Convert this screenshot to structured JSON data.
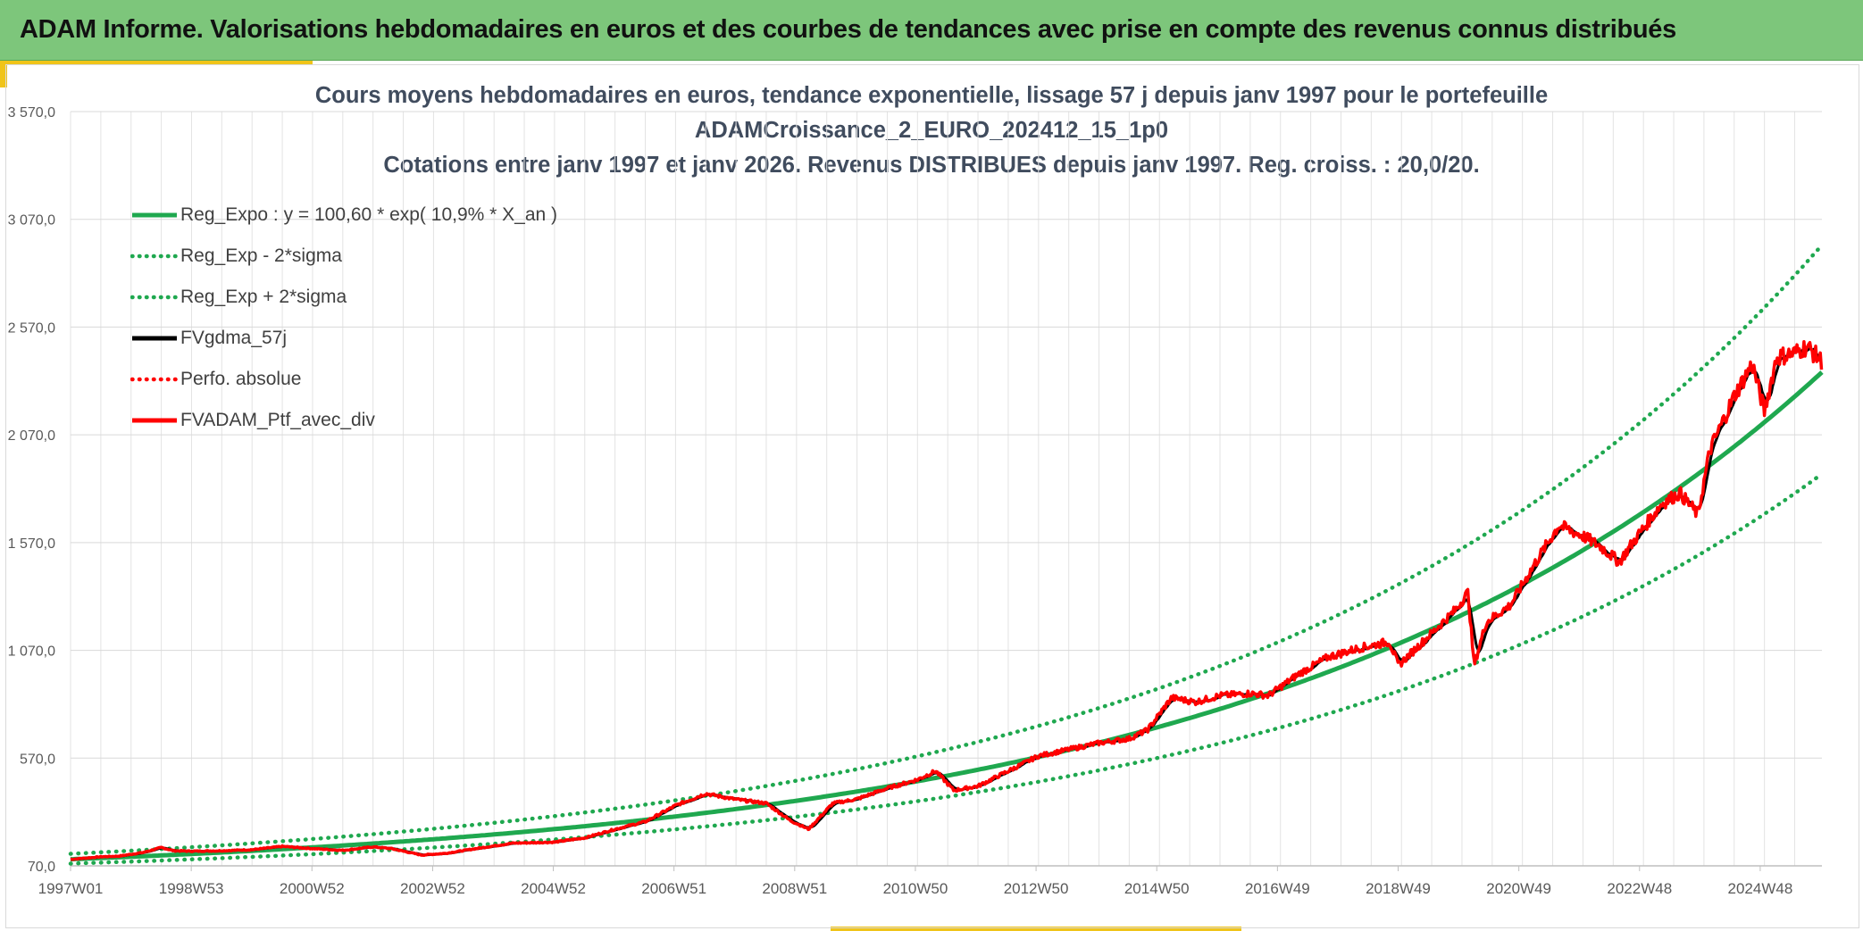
{
  "banner": {
    "title": "ADAM Informe. Valorisations hebdomadaires en euros et des courbes de tendances avec prise en compte des revenus connus distribués"
  },
  "chart_data": {
    "type": "line",
    "title_lines": [
      "Cours moyens hebdomadaires en euros, tendance exponentielle, lissage 57 j depuis janv 1997 pour le portefeuille",
      "ADAMCroissance_2_EURO_202412_15_1p0",
      "Cotations entre janv 1997 et janv 2026. Revenus DISTRIBUES depuis janv 1997. Reg. croiss. : 20,0/20."
    ],
    "xlabel": "",
    "ylabel": "",
    "x_tick_labels": [
      "1997W01",
      "1998W53",
      "2000W52",
      "2002W52",
      "2004W52",
      "2006W51",
      "2008W51",
      "2010W50",
      "2012W50",
      "2014W50",
      "2016W49",
      "2018W49",
      "2020W49",
      "2022W48",
      "2024W48"
    ],
    "x_range": [
      1997.0,
      2025.95
    ],
    "y_tick_labels": [
      "70,0",
      "570,0",
      "1 070,0",
      "1 570,0",
      "2 070,0",
      "2 570,0",
      "3 070,0",
      "3 570,0"
    ],
    "y_ticks": [
      70,
      570,
      1070,
      1570,
      2070,
      2570,
      3070,
      3570
    ],
    "ylim": [
      70,
      3570
    ],
    "grid": true,
    "legend_position": "top-left",
    "regression": {
      "base": 100.6,
      "rate": 0.109,
      "band_factor": 1.25
    },
    "colors": {
      "green": "#1fa84f",
      "black": "#000000",
      "red": "#ff0000"
    },
    "legend": [
      {
        "label": "Reg_Expo : y = 100,60 * exp( 10,9% *  X_an )",
        "color": "#1fa84f",
        "style": "solid"
      },
      {
        "label": "Reg_Exp - 2*sigma",
        "color": "#1fa84f",
        "style": "dotted"
      },
      {
        "label": "Reg_Exp + 2*sigma",
        "color": "#1fa84f",
        "style": "dotted"
      },
      {
        "label": "FVgdma_57j",
        "color": "#000000",
        "style": "solid"
      },
      {
        "label": "Perfo. absolue",
        "color": "#ff0000",
        "style": "dotted"
      },
      {
        "label": "FVADAM_Ptf_avec_div",
        "color": "#ff0000",
        "style": "solid"
      }
    ],
    "series": [
      {
        "name": "Reg_Expo : y = 100,60 * exp( 10,9% *  X_an )",
        "formula": "100.6*exp(0.109*(year-1997))",
        "style": "solid",
        "color": "#1fa84f"
      },
      {
        "name": "Reg_Exp - 2*sigma",
        "formula": "Reg_Expo/1.25",
        "style": "dotted",
        "color": "#1fa84f"
      },
      {
        "name": "Reg_Exp + 2*sigma",
        "formula": "Reg_Expo*1.25",
        "style": "dotted",
        "color": "#1fa84f"
      },
      {
        "name": "FVgdma_57j",
        "style": "solid",
        "color": "#000000"
      },
      {
        "name": "FVADAM_Ptf_avec_div",
        "style": "solid",
        "color": "#ff0000",
        "points": [
          [
            1997.0,
            100
          ],
          [
            1997.5,
            112
          ],
          [
            1997.8,
            115
          ],
          [
            1998.2,
            132
          ],
          [
            1998.5,
            155
          ],
          [
            1998.7,
            140
          ],
          [
            1999.0,
            138
          ],
          [
            1999.5,
            140
          ],
          [
            2000.0,
            145
          ],
          [
            2000.5,
            160
          ],
          [
            2001.0,
            150
          ],
          [
            2001.5,
            142
          ],
          [
            2002.0,
            158
          ],
          [
            2002.3,
            150
          ],
          [
            2002.8,
            120
          ],
          [
            2003.2,
            128
          ],
          [
            2003.7,
            150
          ],
          [
            2004.3,
            175
          ],
          [
            2005.0,
            180
          ],
          [
            2005.5,
            200
          ],
          [
            2006.0,
            240
          ],
          [
            2006.5,
            275
          ],
          [
            2007.0,
            350
          ],
          [
            2007.5,
            405
          ],
          [
            2008.0,
            378
          ],
          [
            2008.5,
            360
          ],
          [
            2008.9,
            280
          ],
          [
            2009.2,
            240
          ],
          [
            2009.6,
            360
          ],
          [
            2010.0,
            380
          ],
          [
            2010.5,
            430
          ],
          [
            2011.0,
            470
          ],
          [
            2011.3,
            510
          ],
          [
            2011.6,
            420
          ],
          [
            2012.0,
            440
          ],
          [
            2012.5,
            510
          ],
          [
            2013.0,
            580
          ],
          [
            2013.5,
            610
          ],
          [
            2014.0,
            640
          ],
          [
            2014.5,
            660
          ],
          [
            2014.8,
            700
          ],
          [
            2015.2,
            850
          ],
          [
            2015.6,
            830
          ],
          [
            2016.0,
            860
          ],
          [
            2016.5,
            870
          ],
          [
            2016.8,
            860
          ],
          [
            2017.3,
            960
          ],
          [
            2017.8,
            1040
          ],
          [
            2018.3,
            1080
          ],
          [
            2018.8,
            1110
          ],
          [
            2018.95,
            1000
          ],
          [
            2019.5,
            1150
          ],
          [
            2019.9,
            1260
          ],
          [
            2020.1,
            1340
          ],
          [
            2020.2,
            1000
          ],
          [
            2020.4,
            1200
          ],
          [
            2020.8,
            1280
          ],
          [
            2021.2,
            1470
          ],
          [
            2021.6,
            1650
          ],
          [
            2022.0,
            1600
          ],
          [
            2022.3,
            1550
          ],
          [
            2022.6,
            1480
          ],
          [
            2022.9,
            1600
          ],
          [
            2023.3,
            1750
          ],
          [
            2023.6,
            1800
          ],
          [
            2023.9,
            1700
          ],
          [
            2024.1,
            2000
          ],
          [
            2024.5,
            2250
          ],
          [
            2024.8,
            2400
          ],
          [
            2025.0,
            2180
          ],
          [
            2025.2,
            2430
          ],
          [
            2025.5,
            2450
          ],
          [
            2025.7,
            2480
          ],
          [
            2025.95,
            2410
          ]
        ]
      }
    ]
  }
}
